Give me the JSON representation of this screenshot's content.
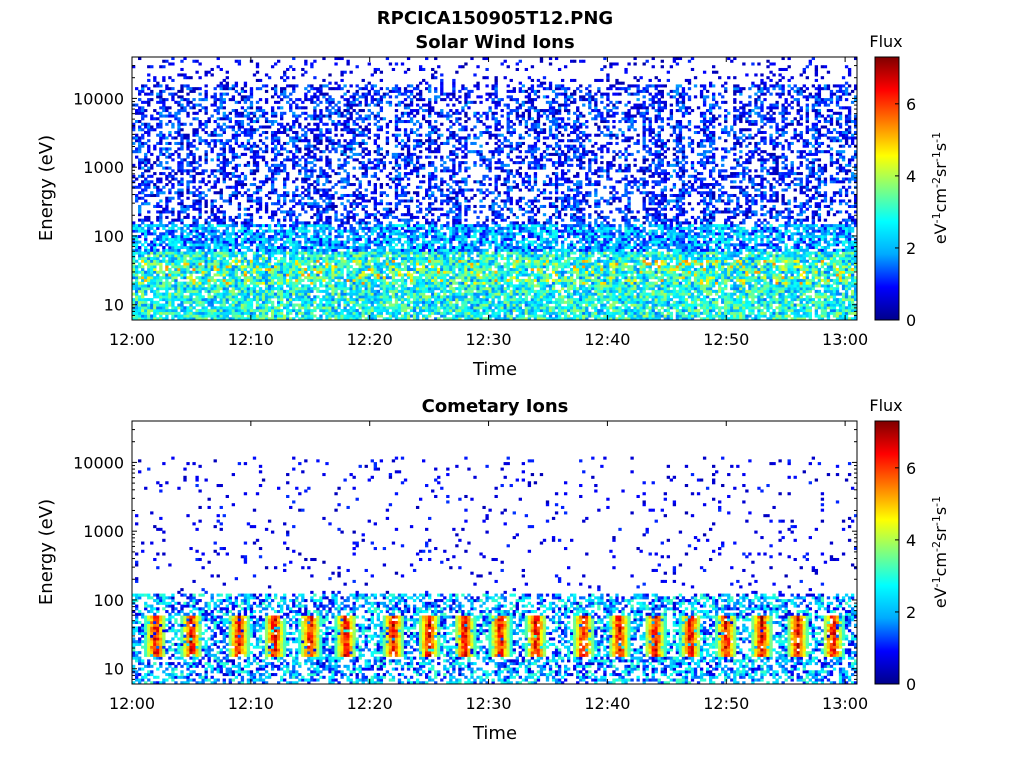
{
  "figure": {
    "title": "RPCICA150905T12.PNG"
  },
  "colorscale": [
    "#00008b",
    "#0000ff",
    "#00aaff",
    "#00ffff",
    "#7fff7f",
    "#ffff00",
    "#ff7f00",
    "#ff0000",
    "#7f0000"
  ],
  "chart_data": [
    {
      "type": "heatmap",
      "title": "Solar Wind Ions",
      "xlabel": "Time",
      "ylabel": "Energy (eV)",
      "yscale": "log",
      "x_ticks": [
        "12:00",
        "12:10",
        "12:20",
        "12:30",
        "12:40",
        "12:50",
        "13:00"
      ],
      "x_range": [
        "12:00",
        "13:01"
      ],
      "y_ticks": [
        "10",
        "100",
        "1000",
        "10000"
      ],
      "y_range": [
        6,
        40000
      ],
      "colorbar": {
        "title": "Flux",
        "unit_label": "eV-1cm-2sr-1s-1",
        "ticks": [
          "0",
          "2",
          "4",
          "6"
        ],
        "range": [
          0,
          7.3
        ]
      },
      "features": {
        "low_energy_band_eV": [
          20,
          60
        ],
        "low_energy_peak_flux": 5,
        "high_energy_background_flux": 1,
        "max_energy_eV": 40000
      }
    },
    {
      "type": "heatmap",
      "title": "Cometary Ions",
      "xlabel": "Time",
      "ylabel": "Energy (eV)",
      "yscale": "log",
      "x_ticks": [
        "12:00",
        "12:10",
        "12:20",
        "12:30",
        "12:40",
        "12:50",
        "13:00"
      ],
      "x_range": [
        "12:00",
        "13:01"
      ],
      "y_ticks": [
        "10",
        "100",
        "1000",
        "10000"
      ],
      "y_range": [
        6,
        40000
      ],
      "colorbar": {
        "title": "Flux",
        "unit_label": "eV-1cm-2sr-1s-1",
        "ticks": [
          "0",
          "2",
          "4",
          "6"
        ],
        "range": [
          0,
          7.3
        ]
      },
      "features": {
        "bursts_at": [
          "12:02",
          "12:05",
          "12:09",
          "12:12",
          "12:15",
          "12:18",
          "12:22",
          "12:25",
          "12:28",
          "12:31",
          "12:34",
          "12:38",
          "12:41",
          "12:44",
          "12:47",
          "12:50",
          "12:53",
          "12:56",
          "12:59"
        ],
        "burst_energy_eV": [
          15,
          60
        ],
        "burst_peak_flux": 7,
        "sparse_energy_range_eV": [
          120,
          10000
        ],
        "dense_band_top_eV": 120
      }
    }
  ]
}
